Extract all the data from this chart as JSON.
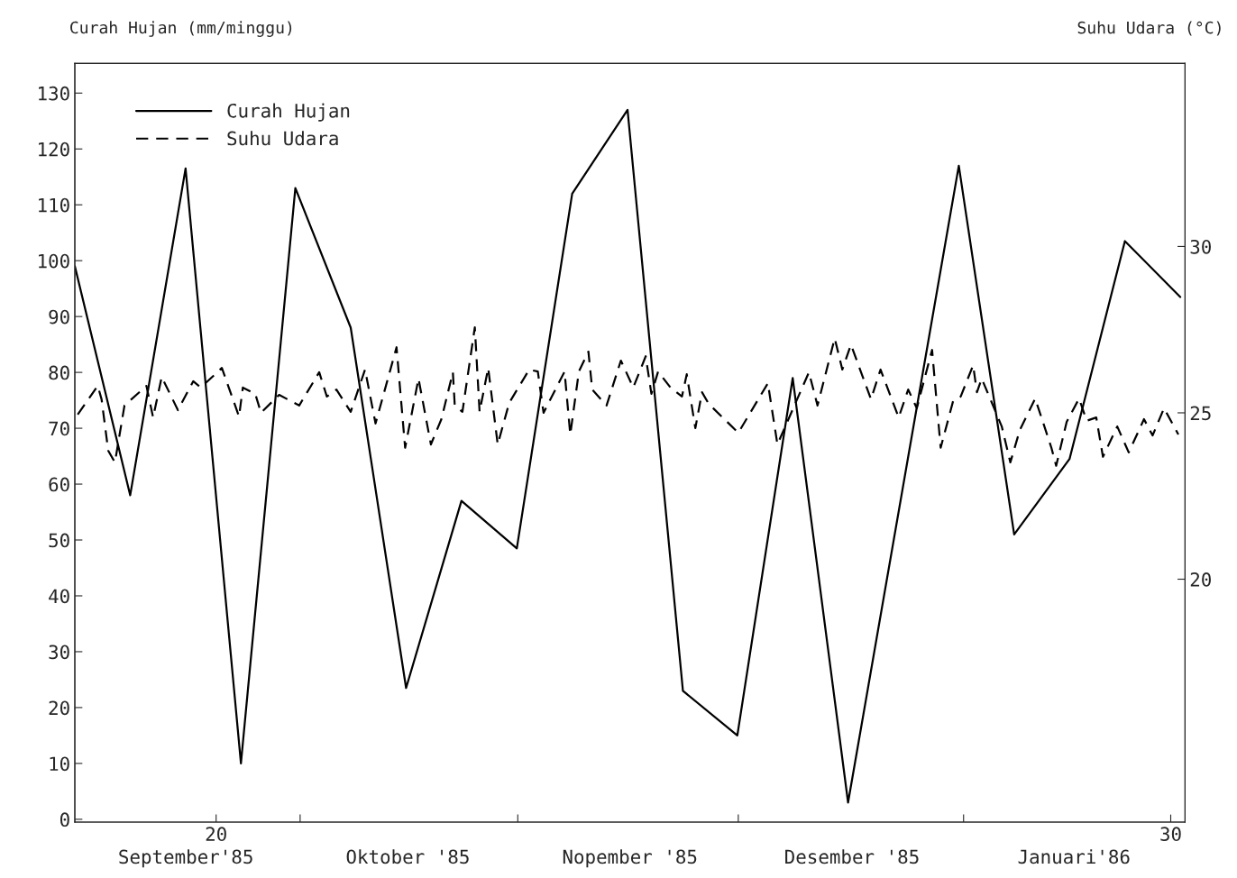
{
  "chart_data": {
    "type": "line",
    "ylabel": "Curah Hujan (mm/minggu)",
    "y2label": "Suhu Udara (°C)",
    "xlim": [
      18.52,
      30.15
    ],
    "xticks": [
      20,
      {
        "value": 20.88,
        "label": null
      },
      {
        "value": 23.16,
        "label": null
      },
      {
        "value": 25.47,
        "label": null
      },
      {
        "value": 27.83,
        "label": null
      },
      30
    ],
    "ylim": [
      -0.5,
      135.3
    ],
    "yticks": [
      0,
      10,
      20,
      30,
      40,
      50,
      60,
      70,
      80,
      90,
      100,
      110,
      120,
      130
    ],
    "y2lim": [
      12.7,
      35.5
    ],
    "y2ticks": [
      20,
      25,
      30
    ],
    "legend": "top left",
    "grid": false,
    "annotations": [
      "September'85",
      "Oktober '85",
      "Nopember '85",
      "Desember '85",
      "Januari'86"
    ],
    "series": [
      {
        "name": "Curah Hujan",
        "color": "#000000",
        "line_style": "solid",
        "x": [
          18.52,
          19.1,
          19.68,
          20.26,
          20.83,
          21.41,
          21.99,
          22.57,
          23.15,
          23.73,
          24.31,
          24.89,
          25.46,
          26.04,
          26.62,
          27.78,
          28.36,
          28.94,
          29.52,
          30.1
        ],
        "values": [
          99,
          58,
          116.5,
          10,
          113,
          88,
          23.5,
          57,
          48.5,
          112,
          127,
          23,
          15,
          79,
          3,
          117,
          51,
          64.5,
          103.5,
          93.5
        ]
      },
      {
        "name": "Suhu Udara",
        "color": "#000000",
        "line_style": "dashed",
        "axis": "y2",
        "x": [
          18.55,
          18.76,
          18.8,
          18.87,
          18.94,
          19.04,
          19.27,
          19.34,
          19.43,
          19.6,
          19.76,
          19.84,
          20.06,
          20.24,
          20.28,
          20.41,
          20.47,
          20.66,
          20.87,
          21.08,
          21.16,
          21.26,
          21.41,
          21.56,
          21.67,
          21.89,
          21.98,
          22.12,
          22.25,
          22.36,
          22.48,
          22.5,
          22.58,
          22.71,
          22.76,
          22.85,
          22.95,
          23.07,
          23.28,
          23.37,
          23.43,
          23.65,
          23.71,
          23.8,
          23.9,
          23.94,
          24.09,
          24.24,
          24.37,
          24.5,
          24.56,
          24.63,
          24.76,
          24.88,
          24.93,
          25.02,
          25.09,
          25.16,
          25.47,
          25.78,
          25.88,
          26.07,
          26.21,
          26.3,
          26.48,
          26.56,
          26.65,
          26.86,
          26.96,
          27.15,
          27.25,
          27.34,
          27.5,
          27.59,
          27.72,
          27.8,
          27.93,
          27.97,
          28.02,
          28.23,
          28.32,
          28.42,
          28.58,
          28.75,
          28.8,
          28.91,
          29.04,
          29.12,
          29.22,
          29.29,
          29.44,
          29.56,
          29.72,
          29.81,
          29.93,
          30.08
        ],
        "values": [
          24.95,
          25.81,
          25.41,
          23.86,
          23.51,
          25.22,
          25.81,
          24.86,
          26.08,
          25.08,
          25.95,
          25.76,
          26.35,
          24.89,
          25.76,
          25.57,
          25.0,
          25.54,
          25.22,
          26.22,
          25.49,
          25.7,
          25.03,
          26.3,
          24.68,
          26.97,
          23.95,
          26.03,
          24.05,
          24.81,
          26.22,
          25.22,
          25.03,
          27.57,
          25.03,
          26.35,
          24.05,
          25.3,
          26.3,
          26.24,
          25.0,
          26.24,
          24.35,
          26.24,
          26.84,
          25.7,
          25.22,
          26.57,
          25.76,
          26.7,
          25.57,
          26.24,
          25.76,
          25.49,
          26.16,
          24.54,
          25.62,
          25.27,
          24.4,
          25.89,
          24.05,
          25.3,
          26.22,
          25.22,
          27.24,
          26.3,
          27.05,
          25.41,
          26.3,
          24.86,
          25.7,
          25.14,
          26.89,
          23.95,
          25.35,
          25.49,
          26.43,
          25.62,
          26.03,
          24.59,
          23.51,
          24.49,
          25.43,
          23.95,
          23.41,
          24.73,
          25.43,
          24.76,
          24.86,
          23.68,
          24.59,
          23.81,
          24.81,
          24.32,
          25.14,
          24.35
        ]
      }
    ]
  }
}
